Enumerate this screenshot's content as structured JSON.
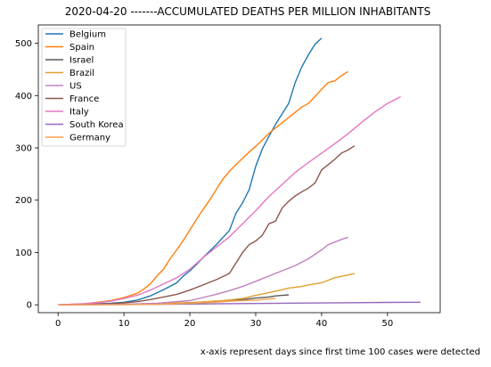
{
  "chart_data": {
    "type": "line",
    "title": "2020-04-20  -------ACCUMULATED DEATHS PER MILLION INHABITANTS",
    "xlabel": "",
    "ylabel": "",
    "xlim": [
      -3,
      58
    ],
    "ylim": [
      -15,
      535
    ],
    "xticks": [
      0,
      10,
      20,
      30,
      40,
      50
    ],
    "yticks": [
      0,
      100,
      200,
      300,
      400,
      500
    ],
    "grid": false,
    "legend_position": "top-left",
    "annotation": "x-axis represent days since first time 100 cases were detected",
    "series": [
      {
        "name": "Belgium",
        "color": "#1f77b4",
        "x": [
          0,
          4,
          8,
          10,
          12,
          14,
          16,
          18,
          19,
          20,
          21,
          22,
          24,
          26,
          27,
          28,
          29,
          30,
          31,
          32,
          33,
          34,
          35,
          36,
          37,
          38,
          39,
          40
        ],
        "y": [
          0,
          1,
          3,
          5,
          9,
          17,
          29,
          42,
          55,
          65,
          77,
          90,
          115,
          142,
          175,
          195,
          220,
          265,
          298,
          322,
          345,
          365,
          385,
          425,
          455,
          478,
          498,
          510
        ]
      },
      {
        "name": "Spain",
        "color": "#ff7f0e",
        "x": [
          0,
          4,
          6,
          8,
          10,
          12,
          13,
          14,
          15,
          16,
          17,
          18,
          19,
          20,
          21,
          22,
          23,
          24,
          25,
          26,
          27,
          28,
          29,
          30,
          31,
          32,
          33,
          34,
          35,
          36,
          37,
          38,
          39,
          40,
          41,
          42,
          43,
          44
        ],
        "y": [
          0,
          2,
          5,
          8,
          14,
          22,
          30,
          40,
          55,
          68,
          88,
          105,
          123,
          143,
          163,
          182,
          200,
          220,
          240,
          255,
          268,
          280,
          292,
          303,
          315,
          328,
          338,
          348,
          358,
          368,
          378,
          385,
          398,
          412,
          425,
          428,
          438,
          446
        ]
      },
      {
        "name": "Israel",
        "color": "#5a5a5a",
        "x": [
          0,
          8,
          15,
          20,
          25,
          28,
          30,
          32,
          33,
          34,
          35
        ],
        "y": [
          0,
          1,
          2,
          4,
          7,
          10,
          13,
          15,
          17,
          18,
          19
        ]
      },
      {
        "name": "Brazil",
        "color": "#e0a030",
        "x": [
          0,
          10,
          20,
          25,
          28,
          30,
          33,
          35,
          37,
          38,
          40,
          41,
          42,
          44,
          45
        ],
        "y": [
          0,
          1,
          4,
          8,
          12,
          18,
          26,
          32,
          35,
          38,
          42,
          47,
          52,
          57,
          60
        ]
      },
      {
        "name": "US",
        "color": "#c080c0",
        "x": [
          0,
          10,
          15,
          20,
          22,
          24,
          26,
          28,
          30,
          32,
          34,
          36,
          38,
          40,
          41,
          42,
          43,
          44
        ],
        "y": [
          0,
          1,
          3,
          8,
          14,
          20,
          27,
          35,
          45,
          55,
          65,
          75,
          88,
          105,
          115,
          120,
          125,
          129
        ]
      },
      {
        "name": "France",
        "color": "#8c564b",
        "x": [
          0,
          8,
          12,
          14,
          16,
          18,
          20,
          22,
          24,
          26,
          27,
          28,
          29,
          30,
          31,
          32,
          33,
          34,
          35,
          36,
          37,
          38,
          39,
          40,
          41,
          42,
          43,
          44,
          45
        ],
        "y": [
          0,
          2,
          6,
          10,
          15,
          20,
          28,
          38,
          48,
          60,
          80,
          100,
          115,
          122,
          133,
          155,
          160,
          185,
          198,
          208,
          216,
          223,
          233,
          258,
          268,
          278,
          290,
          296,
          304
        ]
      },
      {
        "name": "Italy",
        "color": "#e377c2",
        "x": [
          0,
          4,
          6,
          8,
          10,
          12,
          14,
          16,
          18,
          20,
          22,
          24,
          26,
          28,
          30,
          32,
          34,
          36,
          38,
          40,
          42,
          44,
          46,
          48,
          50,
          52
        ],
        "y": [
          0,
          2,
          4,
          7,
          12,
          18,
          28,
          40,
          52,
          68,
          90,
          110,
          130,
          155,
          180,
          207,
          230,
          253,
          272,
          290,
          308,
          327,
          348,
          368,
          385,
          398
        ]
      },
      {
        "name": "South Korea",
        "color": "#9467bd",
        "x": [
          0,
          10,
          20,
          30,
          40,
          50,
          55
        ],
        "y": [
          0,
          0.5,
          1.5,
          2.5,
          3.5,
          4.5,
          5
        ]
      },
      {
        "name": "Germany",
        "color": "#f5a050",
        "x": [
          0,
          10,
          15,
          18,
          20,
          22,
          24,
          26,
          28,
          30,
          31,
          32,
          33
        ],
        "y": [
          0,
          0.5,
          1,
          2,
          3,
          4,
          5,
          7,
          8,
          9,
          10,
          11,
          12
        ]
      }
    ]
  }
}
